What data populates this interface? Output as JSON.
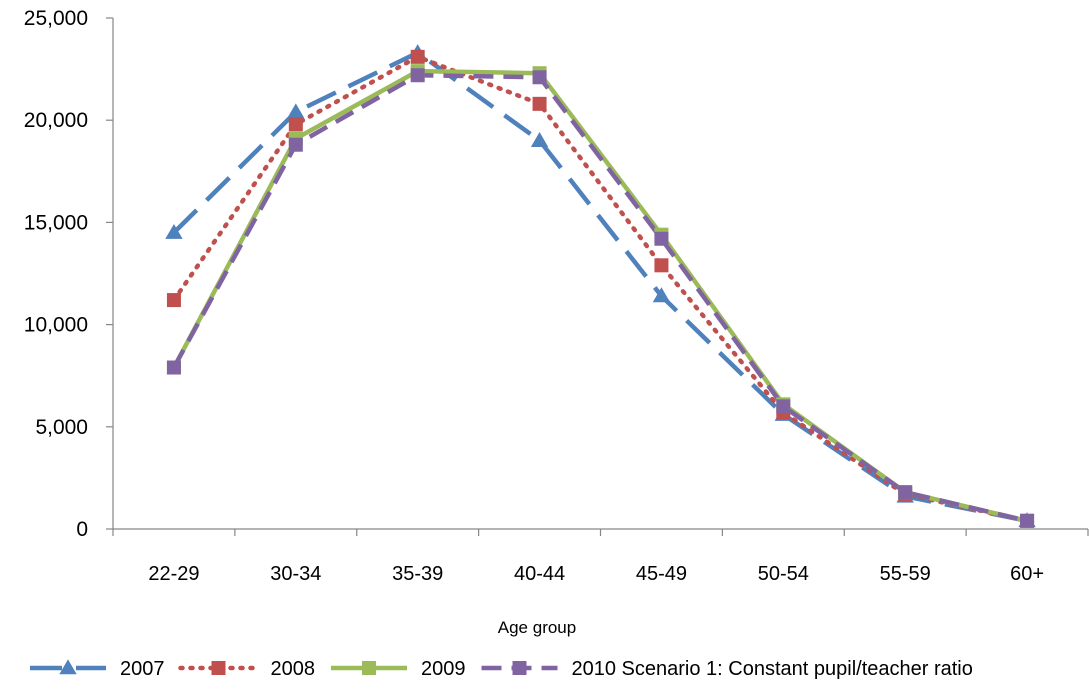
{
  "chart_data": {
    "type": "line",
    "title": "",
    "xlabel": "Age group",
    "ylabel": "",
    "categories": [
      "22-29",
      "30-34",
      "35-39",
      "40-44",
      "45-49",
      "50-54",
      "55-59",
      "60+"
    ],
    "ylim": [
      0,
      25000
    ],
    "yticks": [
      0,
      5000,
      10000,
      15000,
      20000,
      25000
    ],
    "ytick_labels": [
      "0",
      "5,000",
      "10,000",
      "15,000",
      "20,000",
      "25,000"
    ],
    "grid": false,
    "legend_position": "bottom",
    "series": [
      {
        "name": "2007",
        "color": "#4f81bd",
        "marker": "triangle",
        "dash": "long-dash",
        "values": [
          14500,
          20400,
          23300,
          19000,
          11400,
          5600,
          1600,
          400
        ]
      },
      {
        "name": "2008",
        "color": "#c0504d",
        "marker": "square",
        "dash": "dot",
        "values": [
          11200,
          19800,
          23100,
          20800,
          12900,
          5700,
          1700,
          400
        ]
      },
      {
        "name": "2009",
        "color": "#9bbb59",
        "marker": "square",
        "dash": "solid",
        "values": [
          7900,
          19100,
          22400,
          22300,
          14400,
          6100,
          1800,
          400
        ]
      },
      {
        "name": "2010 Scenario 1: Constant pupil/teacher ratio",
        "color": "#8064a2",
        "marker": "square",
        "dash": "dash",
        "values": [
          7900,
          18800,
          22200,
          22100,
          14200,
          6000,
          1800,
          400
        ]
      }
    ]
  }
}
